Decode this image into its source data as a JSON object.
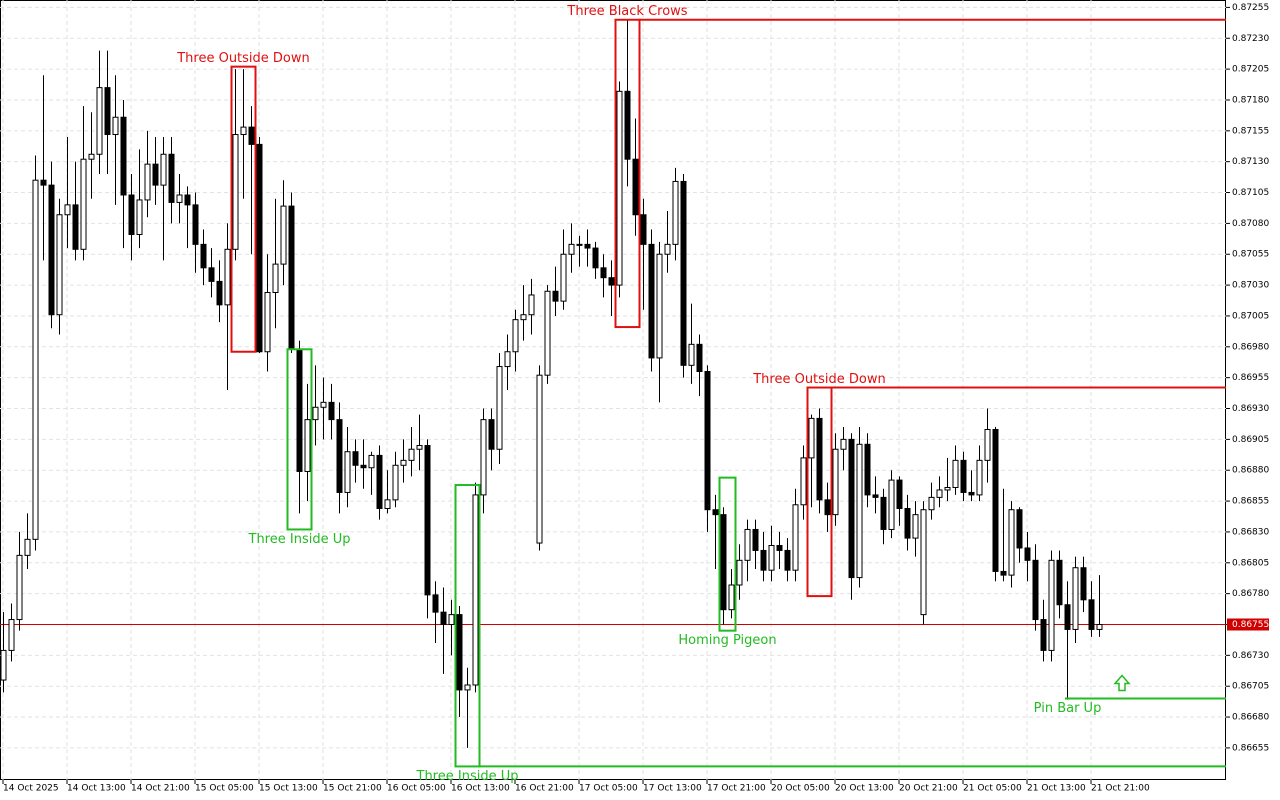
{
  "chart_data": {
    "type": "candlestick",
    "up_color": "#ffffff",
    "down_color": "#000000",
    "outline_color": "#000000",
    "grid": true,
    "ylim": [
      0.86629,
      0.87261
    ],
    "yticks": [
      0.87255,
      {
        "value": 0.8723,
        "label": "0.87230"
      },
      0.87205,
      {
        "value": 0.8718,
        "label": "0.87180"
      },
      0.87155,
      {
        "value": 0.8713,
        "label": "0.87130"
      },
      0.87105,
      {
        "value": 0.8708,
        "label": "0.87080"
      },
      0.87055,
      {
        "value": 0.8703,
        "label": "0.87030"
      },
      0.87005,
      {
        "value": 0.8698,
        "label": "0.86980"
      },
      0.86955,
      {
        "value": 0.8693,
        "label": "0.86930"
      },
      0.86905,
      {
        "value": 0.8688,
        "label": "0.86880"
      },
      0.86855,
      {
        "value": 0.8683,
        "label": "0.86830"
      },
      0.86805,
      {
        "value": 0.8678,
        "label": "0.86780"
      },
      0.86755,
      {
        "value": 0.8673,
        "label": "0.86730"
      },
      0.86705,
      {
        "value": 0.8668,
        "label": "0.86680"
      },
      0.86655
    ],
    "last_price": 0.86755,
    "last_price_color": "#d00000",
    "categories": [
      "14 Oct 2025",
      null,
      null,
      null,
      null,
      null,
      null,
      null,
      "14 Oct 13:00",
      null,
      null,
      null,
      null,
      null,
      null,
      null,
      "14 Oct 21:00",
      null,
      null,
      null,
      null,
      null,
      null,
      null,
      "15 Oct 05:00",
      null,
      null,
      null,
      null,
      null,
      null,
      null,
      "15 Oct 13:00",
      null,
      null,
      null,
      null,
      null,
      null,
      null,
      "15 Oct 21:00",
      null,
      null,
      null,
      null,
      null,
      null,
      null,
      "16 Oct 05:00",
      null,
      null,
      null,
      null,
      null,
      null,
      null,
      "16 Oct 13:00",
      null,
      null,
      null,
      null,
      null,
      null,
      null,
      "16 Oct 21:00",
      null,
      null,
      null,
      null,
      null,
      null,
      null,
      "17 Oct 05:00",
      null,
      null,
      null,
      null,
      null,
      null,
      null,
      "17 Oct 13:00",
      null,
      null,
      null,
      null,
      null,
      null,
      null,
      "17 Oct 21:00",
      null,
      null,
      null,
      null,
      null,
      null,
      null,
      "20 Oct 05:00",
      null,
      null,
      null,
      null,
      null,
      null,
      null,
      "20 Oct 13:00",
      null,
      null,
      null,
      null,
      null,
      null,
      null,
      "20 Oct 21:00",
      null,
      null,
      null,
      null,
      null,
      null,
      null,
      "21 Oct 05:00",
      null,
      null,
      null,
      null,
      null,
      null,
      null,
      "21 Oct 13:00",
      null,
      null,
      null,
      null,
      null,
      null,
      null,
      "21 Oct 21:00",
      null
    ],
    "ohlc": [
      [
        0.8671,
        0.86765,
        0.867,
        0.86734
      ],
      [
        0.86734,
        0.86772,
        0.86725,
        0.86759
      ],
      [
        0.86759,
        0.8683,
        0.8675,
        0.86811
      ],
      [
        0.86811,
        0.86845,
        0.868,
        0.86824
      ],
      [
        0.86824,
        0.87135,
        0.86815,
        0.87115
      ],
      [
        0.87115,
        0.872,
        0.8705,
        0.87111
      ],
      [
        0.87111,
        0.8713,
        0.86995,
        0.87006
      ],
      [
        0.87006,
        0.871,
        0.8699,
        0.87087
      ],
      [
        0.87087,
        0.8715,
        0.8706,
        0.87095
      ],
      [
        0.87095,
        0.8713,
        0.8705,
        0.87059
      ],
      [
        0.87059,
        0.87175,
        0.8705,
        0.87132
      ],
      [
        0.87132,
        0.8717,
        0.871,
        0.87136
      ],
      [
        0.87136,
        0.8722,
        0.8712,
        0.8719
      ],
      [
        0.8719,
        0.8722,
        0.8712,
        0.87152
      ],
      [
        0.87152,
        0.872,
        0.87095,
        0.87166
      ],
      [
        0.87166,
        0.8718,
        0.8706,
        0.87103
      ],
      [
        0.87103,
        0.8712,
        0.8705,
        0.87071
      ],
      [
        0.87071,
        0.8714,
        0.8706,
        0.87099
      ],
      [
        0.87099,
        0.87155,
        0.87085,
        0.87128
      ],
      [
        0.87128,
        0.8715,
        0.87095,
        0.87111
      ],
      [
        0.87111,
        0.8715,
        0.8705,
        0.87136
      ],
      [
        0.87136,
        0.8715,
        0.8708,
        0.87097
      ],
      [
        0.87097,
        0.8712,
        0.8708,
        0.87103
      ],
      [
        0.87103,
        0.8711,
        0.8706,
        0.87095
      ],
      [
        0.87095,
        0.87105,
        0.8704,
        0.87063
      ],
      [
        0.87063,
        0.87075,
        0.8703,
        0.87044
      ],
      [
        0.87044,
        0.8706,
        0.8702,
        0.87033
      ],
      [
        0.87033,
        0.8705,
        0.87,
        0.87014
      ],
      [
        0.87014,
        0.8708,
        0.86945,
        0.87059
      ],
      [
        0.87059,
        0.87205,
        0.8705,
        0.87152
      ],
      [
        0.87152,
        0.87205,
        0.871,
        0.87158
      ],
      [
        0.87158,
        0.87175,
        0.87055,
        0.87144
      ],
      [
        0.87144,
        0.8715,
        0.86975,
        0.86976
      ],
      [
        0.86976,
        0.87055,
        0.8696,
        0.87024
      ],
      [
        0.87024,
        0.871,
        0.86995,
        0.87047
      ],
      [
        0.87047,
        0.87115,
        0.8703,
        0.87094
      ],
      [
        0.87094,
        0.87105,
        0.86975,
        0.86978
      ],
      [
        0.86978,
        0.86985,
        0.86845,
        0.86879
      ],
      [
        0.86879,
        0.8695,
        0.86855,
        0.86921
      ],
      [
        0.86921,
        0.86965,
        0.869,
        0.86931
      ],
      [
        0.86931,
        0.86955,
        0.86905,
        0.86935
      ],
      [
        0.86935,
        0.8695,
        0.86905,
        0.86921
      ],
      [
        0.86921,
        0.86935,
        0.86845,
        0.86862
      ],
      [
        0.86862,
        0.86915,
        0.8685,
        0.86895
      ],
      [
        0.86895,
        0.86905,
        0.8687,
        0.86884
      ],
      [
        0.86884,
        0.86905,
        0.86865,
        0.86882
      ],
      [
        0.86882,
        0.86895,
        0.8686,
        0.86892
      ],
      [
        0.86892,
        0.869,
        0.8684,
        0.86849
      ],
      [
        0.86849,
        0.8688,
        0.86845,
        0.86856
      ],
      [
        0.86856,
        0.86895,
        0.8685,
        0.86884
      ],
      [
        0.86884,
        0.86905,
        0.8687,
        0.86888
      ],
      [
        0.86888,
        0.86915,
        0.86875,
        0.86897
      ],
      [
        0.86897,
        0.86925,
        0.8688,
        0.869
      ],
      [
        0.869,
        0.86905,
        0.8676,
        0.86779
      ],
      [
        0.86779,
        0.8679,
        0.8674,
        0.86765
      ],
      [
        0.86765,
        0.86785,
        0.86715,
        0.86755
      ],
      [
        0.86755,
        0.86775,
        0.8673,
        0.86763
      ],
      [
        0.86763,
        0.8677,
        0.8668,
        0.86702
      ],
      [
        0.86702,
        0.8672,
        0.86655,
        0.86706
      ],
      [
        0.86706,
        0.8687,
        0.867,
        0.8686
      ],
      [
        0.8686,
        0.8693,
        0.86845,
        0.86921
      ],
      [
        0.86921,
        0.8693,
        0.8688,
        0.86897
      ],
      [
        0.86897,
        0.86975,
        0.86885,
        0.86964
      ],
      [
        0.86964,
        0.8699,
        0.86945,
        0.86976
      ],
      [
        0.86976,
        0.8701,
        0.8696,
        0.87002
      ],
      [
        0.87002,
        0.8703,
        0.86985,
        0.87006
      ],
      [
        0.87006,
        0.87035,
        0.8699,
        0.87022
      ],
      [
        0.86821,
        0.86965,
        0.86815,
        0.86957
      ],
      [
        0.86957,
        0.8703,
        0.8695,
        0.87025
      ],
      [
        0.87025,
        0.87045,
        0.87005,
        0.87017
      ],
      [
        0.87017,
        0.87075,
        0.8701,
        0.87055
      ],
      [
        0.87055,
        0.8708,
        0.8704,
        0.87063
      ],
      [
        0.87063,
        0.8707,
        0.87045,
        0.87063
      ],
      [
        0.87063,
        0.87075,
        0.87045,
        0.8706
      ],
      [
        0.8706,
        0.87065,
        0.87035,
        0.87044
      ],
      [
        0.87044,
        0.87055,
        0.8702,
        0.87036
      ],
      [
        0.87036,
        0.8705,
        0.87005,
        0.8703
      ],
      [
        0.8703,
        0.87195,
        0.8702,
        0.87187
      ],
      [
        0.87187,
        0.87245,
        0.8711,
        0.87132
      ],
      [
        0.87132,
        0.87165,
        0.8707,
        0.87087
      ],
      [
        0.87087,
        0.871,
        0.8701,
        0.87063
      ],
      [
        0.87063,
        0.87075,
        0.8696,
        0.86971
      ],
      [
        0.86971,
        0.87065,
        0.86935,
        0.87055
      ],
      [
        0.87055,
        0.8709,
        0.8704,
        0.87063
      ],
      [
        0.87063,
        0.87125,
        0.8705,
        0.87114
      ],
      [
        0.87114,
        0.8712,
        0.86955,
        0.86965
      ],
      [
        0.86965,
        0.87015,
        0.8695,
        0.86982
      ],
      [
        0.86982,
        0.8699,
        0.8694,
        0.8696
      ],
      [
        0.8696,
        0.86965,
        0.8683,
        0.86848
      ],
      [
        0.86848,
        0.8686,
        0.868,
        0.86844
      ],
      [
        0.86844,
        0.8685,
        0.86755,
        0.86767
      ],
      [
        0.86767,
        0.868,
        0.8676,
        0.86787
      ],
      [
        0.86787,
        0.8682,
        0.86775,
        0.86807
      ],
      [
        0.86807,
        0.8684,
        0.8679,
        0.86832
      ],
      [
        0.86832,
        0.8684,
        0.868,
        0.86815
      ],
      [
        0.86815,
        0.8683,
        0.8679,
        0.86799
      ],
      [
        0.86799,
        0.86835,
        0.8679,
        0.86819
      ],
      [
        0.86819,
        0.8683,
        0.868,
        0.86815
      ],
      [
        0.86815,
        0.86825,
        0.8679,
        0.86799
      ],
      [
        0.86799,
        0.86865,
        0.8679,
        0.86852
      ],
      [
        0.86852,
        0.869,
        0.8684,
        0.8689
      ],
      [
        0.8689,
        0.86925,
        0.8685,
        0.86922
      ],
      [
        0.86922,
        0.8693,
        0.86845,
        0.86856
      ],
      [
        0.86856,
        0.8687,
        0.8683,
        0.86844
      ],
      [
        0.86844,
        0.8691,
        0.86835,
        0.86897
      ],
      [
        0.86897,
        0.86915,
        0.8688,
        0.86905
      ],
      [
        0.86905,
        0.8691,
        0.86775,
        0.86793
      ],
      [
        0.86793,
        0.86915,
        0.86785,
        0.86901
      ],
      [
        0.86901,
        0.8691,
        0.8685,
        0.8686
      ],
      [
        0.8686,
        0.86875,
        0.86845,
        0.86858
      ],
      [
        0.86858,
        0.86865,
        0.8682,
        0.86832
      ],
      [
        0.86832,
        0.8688,
        0.86825,
        0.86872
      ],
      [
        0.86872,
        0.86875,
        0.86835,
        0.86849
      ],
      [
        0.86849,
        0.8686,
        0.86815,
        0.86825
      ],
      [
        0.86825,
        0.86855,
        0.8681,
        0.86844
      ],
      [
        0.86763,
        0.86855,
        0.86755,
        0.86848
      ],
      [
        0.86848,
        0.8687,
        0.8684,
        0.86858
      ],
      [
        0.86858,
        0.86875,
        0.8685,
        0.86864
      ],
      [
        0.86864,
        0.8689,
        0.86855,
        0.86866
      ],
      [
        0.86866,
        0.869,
        0.8686,
        0.86888
      ],
      [
        0.86888,
        0.86895,
        0.86855,
        0.86862
      ],
      [
        0.86862,
        0.8688,
        0.86855,
        0.8686
      ],
      [
        0.8686,
        0.869,
        0.86855,
        0.86888
      ],
      [
        0.86888,
        0.8693,
        0.8687,
        0.86913
      ],
      [
        0.86913,
        0.86915,
        0.8679,
        0.86798
      ],
      [
        0.86798,
        0.86865,
        0.8679,
        0.86795
      ],
      [
        0.86795,
        0.86855,
        0.86785,
        0.86848
      ],
      [
        0.86848,
        0.8685,
        0.86805,
        0.86817
      ],
      [
        0.86817,
        0.8683,
        0.8679,
        0.86807
      ],
      [
        0.86807,
        0.8682,
        0.8675,
        0.86759
      ],
      [
        0.86759,
        0.86775,
        0.86725,
        0.86734
      ],
      [
        0.86734,
        0.86815,
        0.86725,
        0.86807
      ],
      [
        0.86807,
        0.86815,
        0.8676,
        0.86771
      ],
      [
        0.86771,
        0.8679,
        0.86694,
        0.86751
      ],
      [
        0.86751,
        0.8681,
        0.8674,
        0.86801
      ],
      [
        0.86801,
        0.8681,
        0.86765,
        0.86775
      ],
      [
        0.86775,
        0.8679,
        0.86745,
        0.86751
      ],
      [
        0.86751,
        0.86795,
        0.86745,
        0.86755
      ]
    ],
    "annotations": [
      {
        "text": "Three Outside Down",
        "color": "#e01010",
        "start": 29,
        "end": 31,
        "high": 0.87207,
        "low": 0.86976
      },
      {
        "text": "Three Inside Up",
        "color": "#22bb22",
        "start": 36,
        "end": 38,
        "high": 0.86978,
        "low": 0.86832
      },
      {
        "text": "Three Black Crows",
        "color": "#e01010",
        "start": 77,
        "end": 79,
        "high": 0.87245,
        "low": 0.86996,
        "extend": "high"
      },
      {
        "text": "Three Inside Up",
        "color": "#22bb22",
        "start": 57,
        "end": 59,
        "high": 0.86868,
        "low": 0.8664,
        "extend": "low"
      },
      {
        "text": "Homing Pigeon",
        "color": "#22bb22",
        "start": 90,
        "end": 91,
        "high": 0.86874,
        "low": 0.8675
      },
      {
        "text": "Three Outside Down",
        "color": "#e01010",
        "start": 101,
        "end": 103,
        "high": 0.86947,
        "low": 0.86778,
        "extend": "high"
      },
      {
        "text": "Pin Bar Up",
        "color": "#22bb22",
        "start": 133,
        "end": 133,
        "low": 0.86695,
        "extend": "low",
        "arrow": true
      }
    ]
  }
}
